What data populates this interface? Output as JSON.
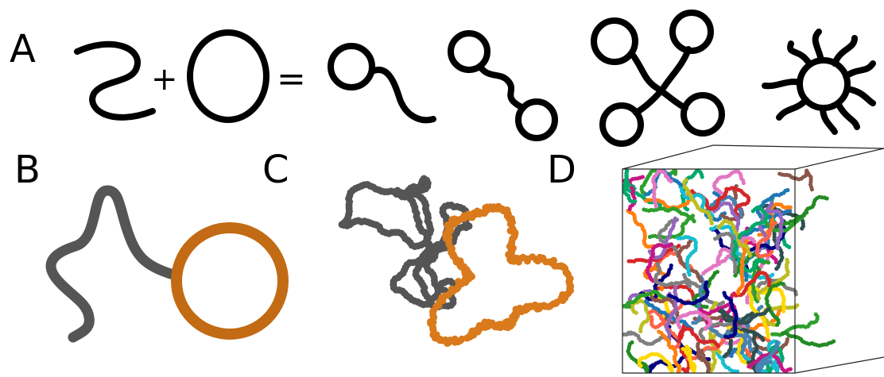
{
  "panels": {
    "a": {
      "label": "A",
      "plus": "+",
      "equals": "="
    },
    "b": {
      "label": "B",
      "linear_color": "#555555",
      "ring_color": "#c26a14"
    },
    "c": {
      "label": "C",
      "linear_color": "#555555",
      "ring_color": "#d97a1c"
    },
    "d": {
      "label": "D"
    }
  },
  "colors": {
    "ink": "#000000",
    "melt_palette": [
      "#1f77b4",
      "#2ca02c",
      "#d62728",
      "#9467bd",
      "#e377c2",
      "#17becf",
      "#ff7f0e",
      "#7f7f7f",
      "#bcbd22",
      "#8c564b",
      "#000080",
      "#00a86b",
      "#c71585",
      "#4682b4",
      "#ffd700",
      "#2f4f4f",
      "#ff6347",
      "#228b22"
    ]
  }
}
